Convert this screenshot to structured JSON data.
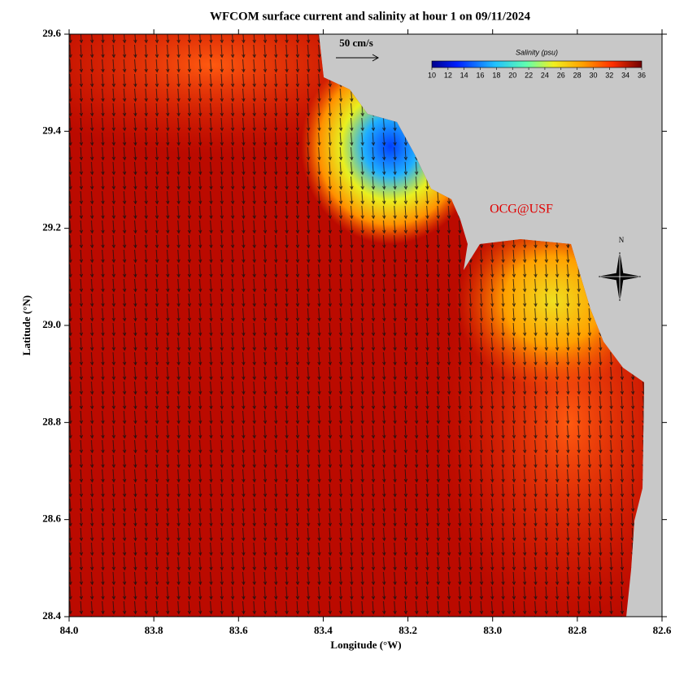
{
  "title": "WFCOM surface current and salinity at hour 1 on 09/11/2024",
  "x_label": "Longitude (°W)",
  "y_label": "Latitude (°N)",
  "xlim": [
    84.0,
    82.6
  ],
  "ylim": [
    28.4,
    29.6
  ],
  "xticks": [
    {
      "value": 84.0,
      "label": "84.0"
    },
    83.8,
    83.6,
    83.4,
    83.2,
    {
      "value": 83.0,
      "label": "83.0"
    },
    82.8,
    82.6
  ],
  "yticks": [
    28.4,
    28.6,
    28.8,
    {
      "value": 29.0,
      "label": "29.0"
    },
    29.2,
    29.4,
    29.6
  ],
  "colorbar": {
    "title": "Salinity (psu)",
    "range": [
      10,
      36
    ],
    "ticks": [
      10,
      12,
      14,
      16,
      18,
      20,
      22,
      24,
      26,
      28,
      30,
      32,
      34,
      36
    ]
  },
  "scale_label": "50 cm/s",
  "watermark": "OCG@USF",
  "compass": "N"
}
